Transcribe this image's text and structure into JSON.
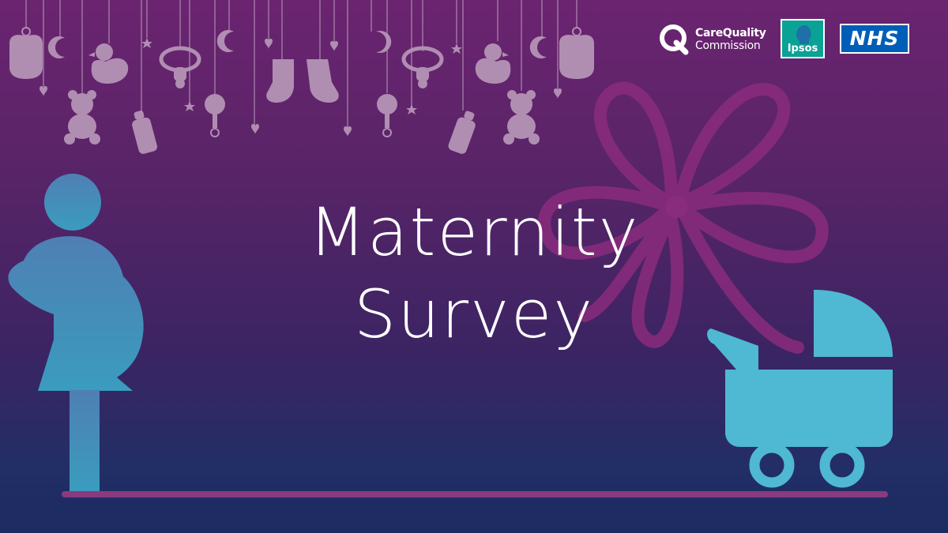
{
  "title": {
    "line1": "Maternity",
    "line2": "Survey"
  },
  "logos": {
    "cqc": {
      "line1": "CareQuality",
      "line2": "Commission"
    },
    "ipsos": "Ipsos",
    "nhs": "NHS"
  },
  "colors": {
    "background_top": "#6b2470",
    "background_bottom": "#1c2b62",
    "ornament": "#b594b6",
    "ribbon": "#8a2c7d",
    "figure_blue": "#3a8fb5",
    "pram_cyan": "#4fb8d2",
    "floor": "#8a3a7e"
  },
  "icons": [
    "bib-icon",
    "moon-icon",
    "duck-icon",
    "pacifier-icon",
    "star-icon",
    "heart-icon",
    "socks-icon",
    "teddy-bear-icon",
    "bottle-icon",
    "rattle-icon",
    "ribbon-bow-icon",
    "pregnant-woman-icon",
    "pram-icon"
  ]
}
